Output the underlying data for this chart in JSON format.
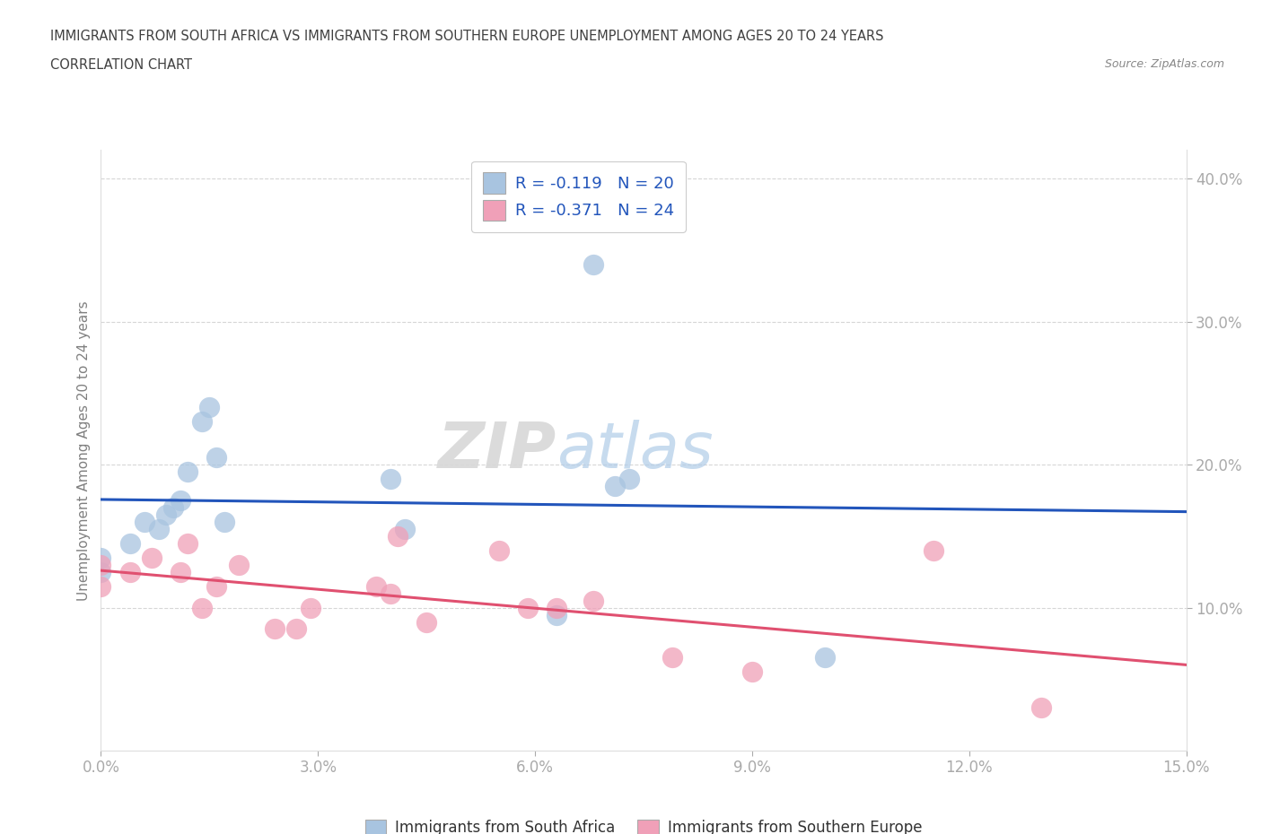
{
  "title_line1": "IMMIGRANTS FROM SOUTH AFRICA VS IMMIGRANTS FROM SOUTHERN EUROPE UNEMPLOYMENT AMONG AGES 20 TO 24 YEARS",
  "title_line2": "CORRELATION CHART",
  "source": "Source: ZipAtlas.com",
  "ylabel": "Unemployment Among Ages 20 to 24 years",
  "xlim": [
    0.0,
    0.15
  ],
  "ylim": [
    0.0,
    0.42
  ],
  "xticks": [
    0.0,
    0.03,
    0.06,
    0.09,
    0.12,
    0.15
  ],
  "xticklabels": [
    "0.0%",
    "3.0%",
    "6.0%",
    "9.0%",
    "12.0%",
    "15.0%"
  ],
  "yticks": [
    0.1,
    0.2,
    0.3,
    0.4
  ],
  "yticklabels": [
    "10.0%",
    "20.0%",
    "30.0%",
    "40.0%"
  ],
  "blue_label": "Immigrants from South Africa",
  "pink_label": "Immigrants from Southern Europe",
  "blue_color": "#a8c4e0",
  "pink_color": "#f0a0b8",
  "blue_line_color": "#2255bb",
  "pink_line_color": "#e05070",
  "blue_R": -0.119,
  "blue_N": 20,
  "pink_R": -0.371,
  "pink_N": 24,
  "watermark_zip": "ZIP",
  "watermark_atlas": "atlas",
  "blue_scatter_x": [
    0.0,
    0.0,
    0.004,
    0.006,
    0.008,
    0.009,
    0.01,
    0.011,
    0.012,
    0.014,
    0.015,
    0.016,
    0.017,
    0.04,
    0.042,
    0.063,
    0.068,
    0.071,
    0.073,
    0.1
  ],
  "blue_scatter_y": [
    0.125,
    0.135,
    0.145,
    0.16,
    0.155,
    0.165,
    0.17,
    0.175,
    0.195,
    0.23,
    0.24,
    0.205,
    0.16,
    0.19,
    0.155,
    0.095,
    0.34,
    0.185,
    0.19,
    0.065
  ],
  "pink_scatter_x": [
    0.0,
    0.0,
    0.004,
    0.007,
    0.011,
    0.012,
    0.014,
    0.016,
    0.019,
    0.024,
    0.027,
    0.029,
    0.038,
    0.04,
    0.041,
    0.045,
    0.055,
    0.059,
    0.063,
    0.068,
    0.079,
    0.09,
    0.115,
    0.13
  ],
  "pink_scatter_y": [
    0.115,
    0.13,
    0.125,
    0.135,
    0.125,
    0.145,
    0.1,
    0.115,
    0.13,
    0.085,
    0.085,
    0.1,
    0.115,
    0.11,
    0.15,
    0.09,
    0.14,
    0.1,
    0.1,
    0.105,
    0.065,
    0.055,
    0.14,
    0.03
  ],
  "background_color": "#ffffff",
  "grid_color": "#cccccc",
  "title_color": "#404040",
  "axis_label_color": "#808080",
  "tick_color": "#4488cc"
}
